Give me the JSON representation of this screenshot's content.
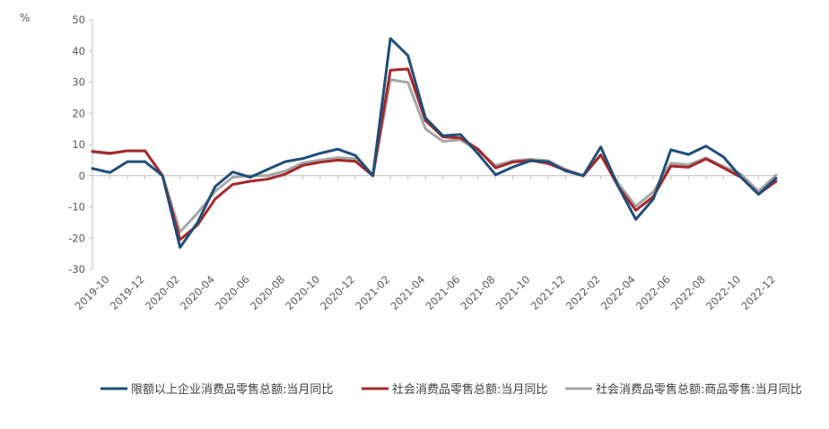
{
  "chart_data": {
    "type": "line",
    "ylabel": "%",
    "ylim": [
      -30,
      50
    ],
    "yticks": [
      -30,
      -20,
      -10,
      0,
      10,
      20,
      30,
      40,
      50
    ],
    "x": [
      "2019-09",
      "2019-10",
      "2019-11",
      "2019-12",
      "2020-01",
      "2020-02",
      "2020-03",
      "2020-04",
      "2020-05",
      "2020-06",
      "2020-07",
      "2020-08",
      "2020-09",
      "2020-10",
      "2020-11",
      "2020-12",
      "2021-01",
      "2021-02",
      "2021-03",
      "2021-04",
      "2021-05",
      "2021-06",
      "2021-07",
      "2021-08",
      "2021-09",
      "2021-10",
      "2021-11",
      "2021-12",
      "2022-01",
      "2022-02",
      "2022-03",
      "2022-04",
      "2022-05",
      "2022-06",
      "2022-07",
      "2022-08",
      "2022-09",
      "2022-10",
      "2022-11",
      "2022-12"
    ],
    "xticklabels": [
      "2019-10",
      "2019-12",
      "2020-02",
      "2020-04",
      "2020-06",
      "2020-08",
      "2020-10",
      "2020-12",
      "2021-02",
      "2021-04",
      "2021-06",
      "2021-08",
      "2021-10",
      "2021-12",
      "2022-02",
      "2022-04",
      "2022-06",
      "2022-08",
      "2022-10",
      "2022-12"
    ],
    "legend_position": "bottom",
    "grid": false,
    "series": [
      {
        "name": "限额以上企业消费品零售总额:当月同比",
        "color": "#1f4e79",
        "values": [
          2.3,
          1.0,
          4.5,
          4.5,
          0,
          -23.0,
          -15.0,
          -3.5,
          1.2,
          -0.5,
          2.0,
          4.5,
          5.5,
          7.2,
          8.5,
          6.5,
          0,
          44.0,
          38.5,
          18.5,
          12.8,
          13.2,
          7.0,
          0.3,
          2.8,
          4.8,
          4.5,
          1.5,
          0,
          9.2,
          -3.5,
          -14.0,
          -7.5,
          8.3,
          6.8,
          9.5,
          6.0,
          -0.5,
          -6.0,
          -0.8
        ]
      },
      {
        "name": "社会消费品零售总额:当月同比",
        "color": "#a5282b",
        "values": [
          7.8,
          7.2,
          8.0,
          8.0,
          0,
          -20.5,
          -15.8,
          -7.5,
          -2.8,
          -1.8,
          -1.1,
          0.5,
          3.3,
          4.3,
          5.0,
          4.6,
          0,
          33.8,
          34.2,
          17.7,
          12.4,
          12.1,
          8.5,
          2.5,
          4.4,
          4.9,
          3.9,
          1.7,
          0,
          6.7,
          -3.5,
          -11.1,
          -6.7,
          3.1,
          2.7,
          5.4,
          2.5,
          -0.5,
          -5.9,
          -1.8
        ]
      },
      {
        "name": "社会消费品零售总额:商品零售:当月同比",
        "color": "#a6a6a6",
        "values": [
          7.6,
          7.0,
          7.9,
          7.9,
          0,
          -18.0,
          -12.0,
          -5.0,
          -0.5,
          0.0,
          0.0,
          1.5,
          4.1,
          5.0,
          5.8,
          5.5,
          0,
          30.8,
          29.9,
          15.0,
          11.0,
          11.5,
          8.0,
          3.3,
          4.8,
          5.3,
          4.8,
          2.0,
          0,
          6.5,
          -2.5,
          -9.8,
          -5.2,
          4.0,
          3.5,
          5.7,
          3.0,
          0.5,
          -5.0,
          0.2
        ]
      }
    ]
  }
}
